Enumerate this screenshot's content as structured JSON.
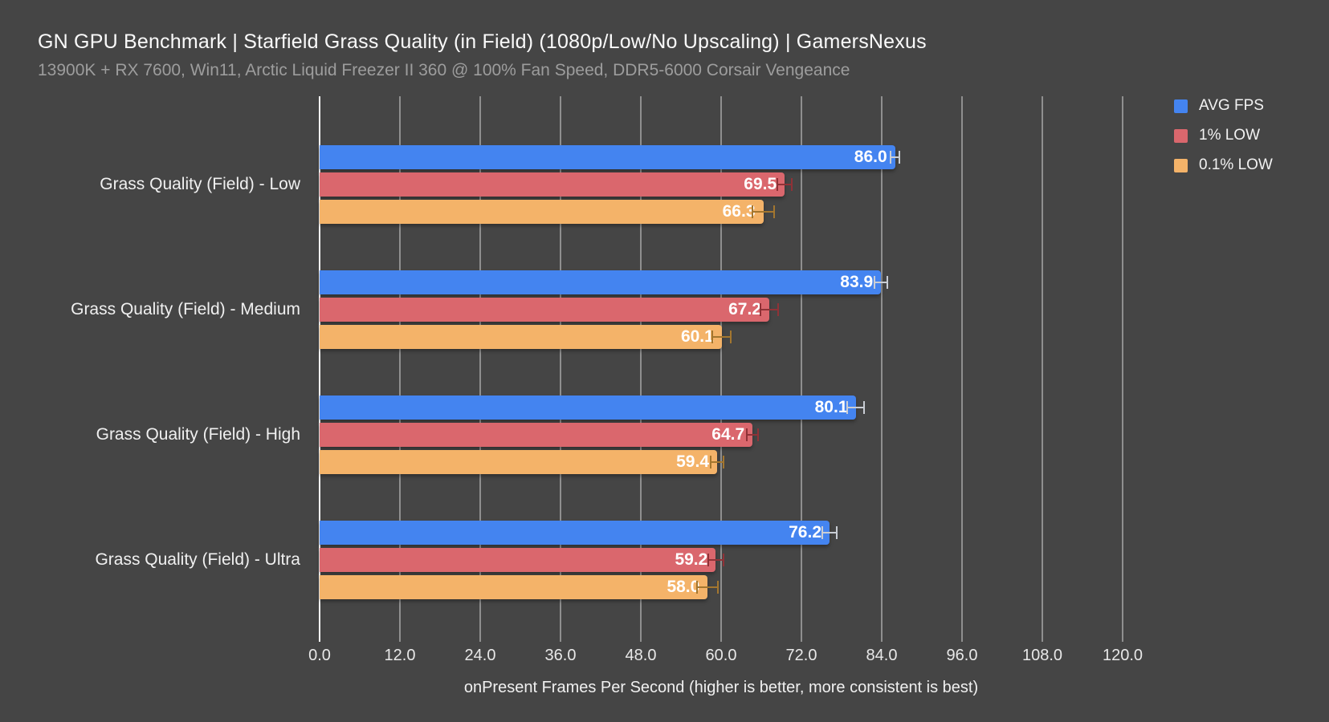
{
  "header": {
    "title": "GN GPU Benchmark | Starfield Grass Quality (in Field) (1080p/Low/No Upscaling) | GamersNexus",
    "subtitle": "13900K + RX 7600, Win11, Arctic Liquid Freezer II 360 @ 100% Fan Speed, DDR5-6000 Corsair Vengeance"
  },
  "colors": {
    "background": "#454545",
    "gridline": "#8f8f8f",
    "axis_line": "#f8f8f8",
    "title_text": "#fafafa",
    "subtitle_text": "#9d9d9d",
    "category_text": "#f0f0f0",
    "tick_text": "#e8e8e8",
    "value_text": "#ffffff"
  },
  "legend": {
    "position": "top-right",
    "items": [
      {
        "label": "AVG FPS",
        "color": "#4484f0"
      },
      {
        "label": "1% LOW",
        "color": "#da676d"
      },
      {
        "label": "0.1% LOW",
        "color": "#f4b369"
      }
    ]
  },
  "chart_data": {
    "type": "bar",
    "orientation": "horizontal",
    "title": "GN GPU Benchmark | Starfield Grass Quality (in Field) (1080p/Low/No Upscaling) | GamersNexus",
    "subtitle": "13900K + RX 7600, Win11, Arctic Liquid Freezer II 360 @ 100% Fan Speed, DDR5-6000 Corsair Vengeance",
    "categories": [
      "Grass Quality (Field) - Low",
      "Grass Quality (Field) - Medium",
      "Grass Quality (Field) - High",
      "Grass Quality (Field) - Ultra"
    ],
    "series": [
      {
        "name": "AVG FPS",
        "color": "#4484f0",
        "error_color": "#c9cdd4",
        "values": [
          86.0,
          83.9,
          80.1,
          76.2
        ],
        "errors": [
          0.8,
          1.1,
          1.4,
          1.2
        ]
      },
      {
        "name": "1% LOW",
        "color": "#da676d",
        "error_color": "#8f3237",
        "values": [
          69.5,
          67.2,
          64.7,
          59.2
        ],
        "errors": [
          1.2,
          1.4,
          1.0,
          1.3
        ]
      },
      {
        "name": "0.1% LOW",
        "color": "#f4b369",
        "error_color": "#a3762f",
        "values": [
          66.3,
          60.1,
          59.4,
          58.0
        ],
        "errors": [
          1.7,
          1.5,
          1.1,
          1.7
        ]
      }
    ],
    "xlabel": "onPresent Frames Per Second (higher is better, more consistent is best)",
    "xticks": [
      0,
      12,
      24,
      36,
      48,
      60,
      72,
      84,
      96,
      108,
      120
    ],
    "xtick_format": "one-decimal",
    "xlim": [
      0,
      136.8
    ],
    "grid": true,
    "legend_position": "top-right",
    "value_labels": "inside-end, one decimal, bold white",
    "error_bars": true
  }
}
